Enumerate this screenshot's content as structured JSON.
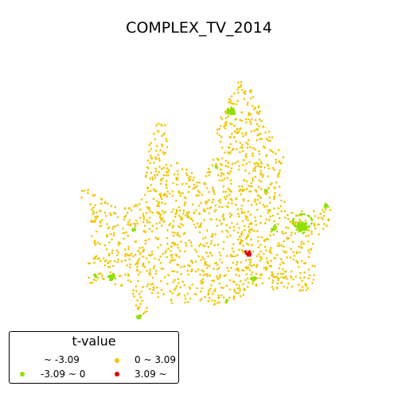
{
  "title": "COMPLEX_TV_2014",
  "legend": {
    "title": "t-value",
    "items": [
      {
        "label": "~ -3.09",
        "color": "#ffffff"
      },
      {
        "label": "-3.09 ~ 0",
        "color": "#8fe000"
      },
      {
        "label": "0 ~ 3.09",
        "color": "#f2c500"
      },
      {
        "label": "3.09 ~",
        "color": "#e60000"
      }
    ]
  }
}
